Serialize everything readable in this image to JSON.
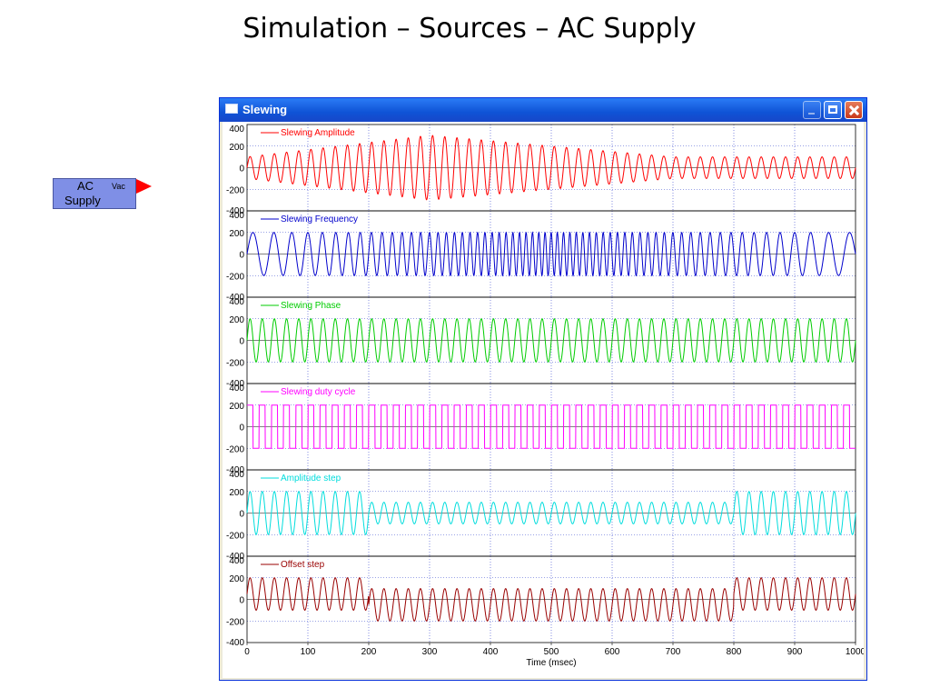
{
  "slide": {
    "title": "Simulation – Sources – AC Supply"
  },
  "block": {
    "line1": "AC",
    "port_label": "Vac",
    "line2": "Supply",
    "color": "#7f8fe6",
    "port_color": "#ff0000"
  },
  "window": {
    "title": "Slewing"
  },
  "chart_data": {
    "type": "line",
    "xlabel": "Time (msec)",
    "xlim": [
      0,
      1000
    ],
    "xticks": [
      0,
      100,
      200,
      300,
      400,
      500,
      600,
      700,
      800,
      900,
      1000
    ],
    "ylim": [
      -400,
      400
    ],
    "yticks": [
      400,
      200,
      0,
      -200,
      -400
    ],
    "grid": true,
    "legend_placement": "top-left",
    "series": [
      {
        "name": "Slewing Amplitude",
        "color": "#ff0000",
        "waveform": "sine",
        "frequency_cycles": 50,
        "amplitude_segments": [
          [
            0,
            100
          ],
          [
            300,
            300
          ],
          [
            700,
            100
          ],
          [
            1000,
            100
          ]
        ],
        "offset": 0
      },
      {
        "name": "Slewing Frequency",
        "color": "#0000cc",
        "waveform": "sine",
        "amplitude": 200,
        "frequency_segments": [
          [
            0,
            25
          ],
          [
            500,
            100
          ],
          [
            1000,
            25
          ]
        ],
        "offset": 0
      },
      {
        "name": "Slewing Phase",
        "color": "#00cc00",
        "waveform": "sine",
        "amplitude": 200,
        "frequency_cycles": 50,
        "offset": 0
      },
      {
        "name": "Slewing duty cycle",
        "color": "#ff00ff",
        "waveform": "square",
        "amplitude": 200,
        "frequency_cycles": 50,
        "offset": 0
      },
      {
        "name": "Amplitude step",
        "color": "#00dddd",
        "waveform": "sine",
        "frequency_cycles": 50,
        "amplitude_steps": [
          [
            0,
            200
          ],
          [
            200,
            100
          ],
          [
            800,
            200
          ]
        ],
        "offset": 0
      },
      {
        "name": "Offset step",
        "color": "#990000",
        "waveform": "sine",
        "amplitude": 150,
        "frequency_cycles": 50,
        "offset_steps": [
          [
            0,
            50
          ],
          [
            200,
            -50
          ],
          [
            800,
            50
          ]
        ]
      }
    ]
  }
}
